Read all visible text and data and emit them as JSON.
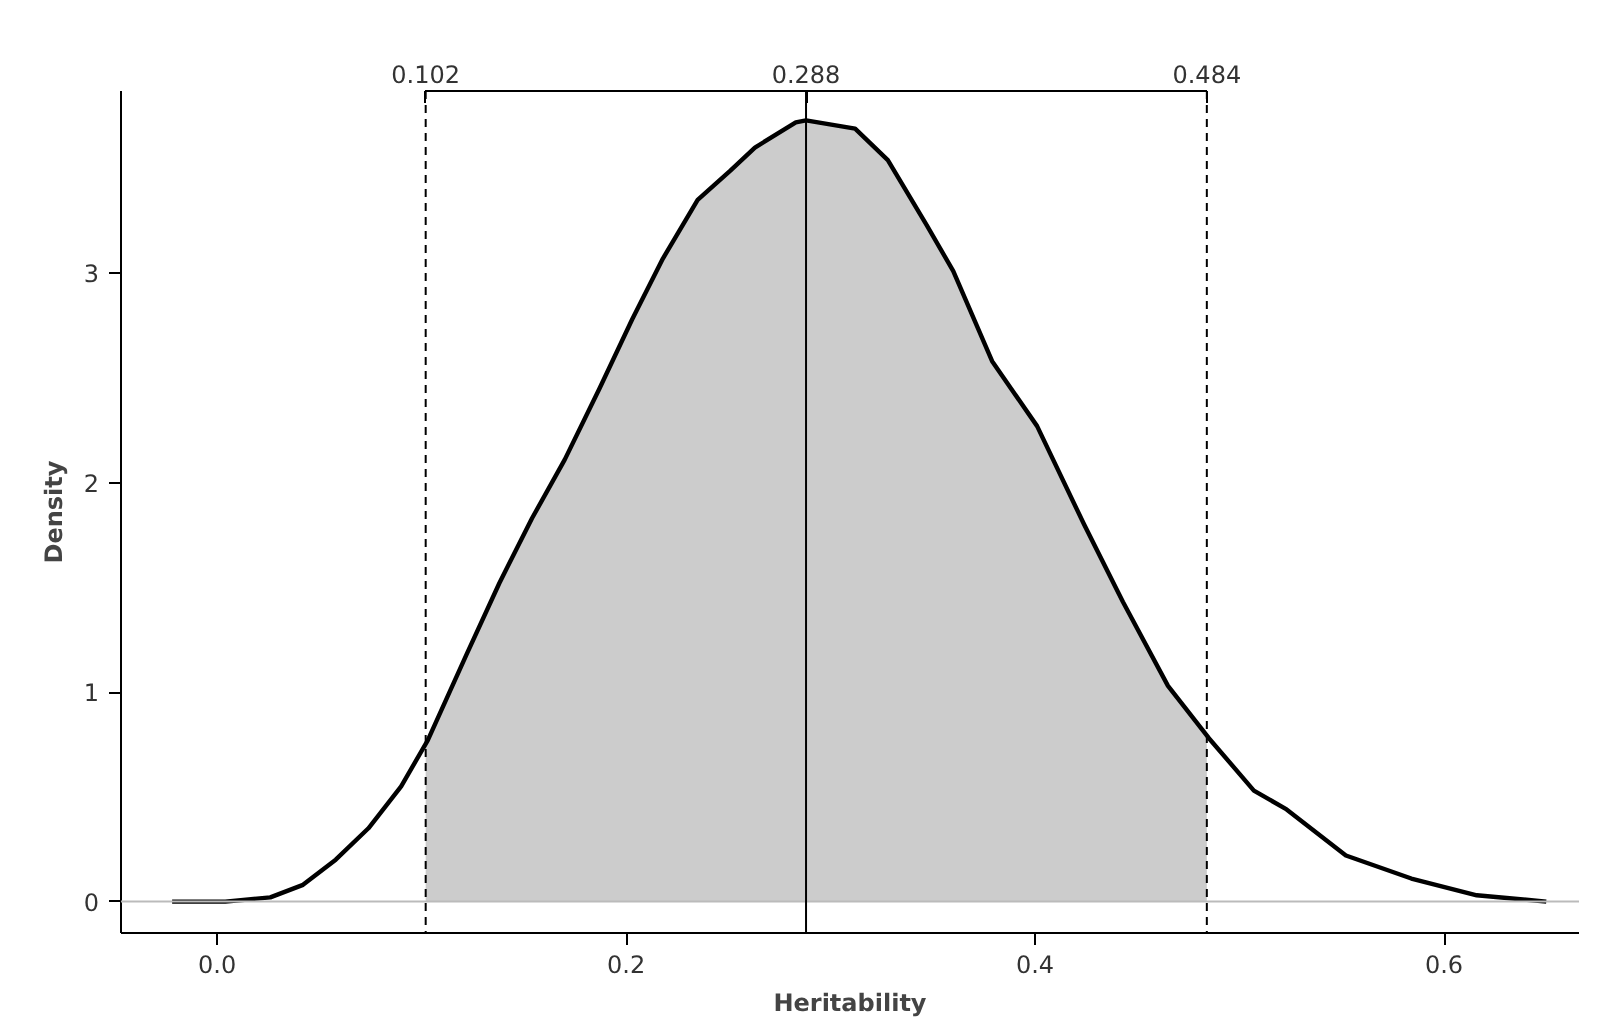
{
  "chart_data": {
    "type": "line",
    "xlabel": "Heritability",
    "ylabel": "Density",
    "xlim": [
      -0.047,
      0.666
    ],
    "ylim": [
      -0.15,
      3.87
    ],
    "xticks": [
      {
        "value": 0,
        "label": "0.0"
      },
      0.2,
      0.4,
      0.6
    ],
    "yticks": [
      0,
      1,
      2,
      3
    ],
    "grid": false,
    "series": [
      {
        "type": "area",
        "color": "#cccccc",
        "x": [
          0.102,
          0.103,
          0.122,
          0.138,
          0.154,
          0.17,
          0.187,
          0.203,
          0.218,
          0.235,
          0.251,
          0.263,
          0.283,
          0.288,
          0.312,
          0.328,
          0.347,
          0.36,
          0.379,
          0.401,
          0.424,
          0.443,
          0.465,
          0.484
        ],
        "values": [
          0.75,
          0.77,
          1.18,
          1.52,
          1.83,
          2.11,
          2.45,
          2.78,
          3.07,
          3.35,
          3.49,
          3.6,
          3.72,
          3.73,
          3.69,
          3.54,
          3.23,
          3.01,
          2.58,
          2.27,
          1.8,
          1.43,
          1.03,
          0.78
        ]
      },
      {
        "color": "#000000",
        "x": [
          -0.022,
          0.004,
          0.026,
          0.042,
          0.058,
          0.074,
          0.09,
          0.103,
          0.122,
          0.138,
          0.154,
          0.17,
          0.187,
          0.203,
          0.218,
          0.235,
          0.251,
          0.263,
          0.283,
          0.288,
          0.312,
          0.328,
          0.347,
          0.36,
          0.379,
          0.401,
          0.424,
          0.443,
          0.465,
          0.485,
          0.507,
          0.523,
          0.552,
          0.584,
          0.616,
          0.65
        ],
        "values": [
          0,
          0,
          0.02,
          0.08,
          0.2,
          0.35,
          0.55,
          0.77,
          1.18,
          1.52,
          1.83,
          2.11,
          2.45,
          2.78,
          3.07,
          3.35,
          3.49,
          3.6,
          3.72,
          3.73,
          3.69,
          3.54,
          3.23,
          3.01,
          2.58,
          2.27,
          1.8,
          1.43,
          1.03,
          0.78,
          0.53,
          0.44,
          0.22,
          0.11,
          0.03,
          0
        ]
      }
    ],
    "ref_lines": [
      {
        "axis": "y",
        "value": 0,
        "color": "#bbbbbb",
        "line_style": "solid"
      },
      {
        "axis": "x",
        "value": 0.102,
        "label": "0.102",
        "color": "#000000",
        "line_style": "dashed"
      },
      {
        "axis": "x",
        "value": 0.288,
        "label": "0.288",
        "color": "#000000",
        "line_style": "solid"
      },
      {
        "axis": "x",
        "value": 0.484,
        "label": "0.484",
        "color": "#000000",
        "line_style": "dashed"
      }
    ]
  }
}
